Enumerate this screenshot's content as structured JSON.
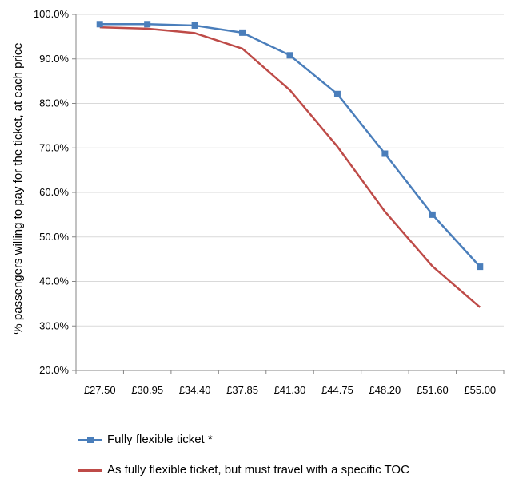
{
  "chart_data": {
    "type": "line",
    "title": "",
    "xlabel": "",
    "ylabel": "% passengers willing to pay for the ticket, at each price",
    "categories": [
      "£27.50",
      "£30.95",
      "£34.40",
      "£37.85",
      "£41.30",
      "£44.75",
      "£48.20",
      "£51.60",
      "£55.00"
    ],
    "ylim": [
      20,
      100
    ],
    "yticks": [
      "20.0%",
      "30.0%",
      "40.0%",
      "50.0%",
      "60.0%",
      "70.0%",
      "80.0%",
      "90.0%",
      "100.0%"
    ],
    "grid": "horizontal",
    "legend_position": "bottom",
    "series": [
      {
        "name": "Fully flexible ticket *",
        "values": [
          97.8,
          97.8,
          97.5,
          95.9,
          90.8,
          82.1,
          68.7,
          55.0,
          43.3
        ],
        "color": "#4a7ebb",
        "marker": "square"
      },
      {
        "name": "As fully flexible ticket, but must travel with a specific TOC",
        "values": [
          97.1,
          96.8,
          95.8,
          92.3,
          83.0,
          70.3,
          55.7,
          43.4,
          34.2
        ],
        "color": "#be4b48",
        "marker": "none"
      }
    ]
  }
}
